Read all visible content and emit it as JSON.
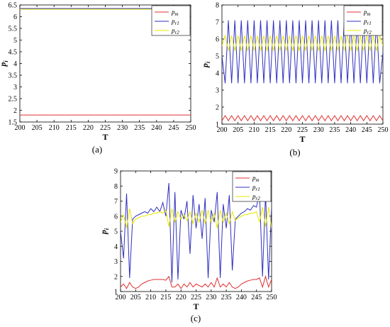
{
  "chart_data": [
    {
      "type": "line",
      "panel_label": "(a)",
      "xlabel": "T",
      "ylabel": "p",
      "ylabel_sub": "i",
      "xlim": [
        200,
        250
      ],
      "ylim": [
        1.5,
        6.5
      ],
      "xticks": [
        "200",
        "205",
        "210",
        "215",
        "220",
        "225",
        "230",
        "235",
        "240",
        "245",
        "250"
      ],
      "yticks": [
        "1.5",
        "2",
        "2.5",
        "3",
        "3.5",
        "4",
        "4.5",
        "5",
        "5.5",
        "6",
        "6.5"
      ],
      "legend_position": "top-right",
      "series": [
        {
          "name": "p",
          "sub": "m",
          "color": "#e03030",
          "x": [
            200,
            250
          ],
          "y": [
            1.8,
            1.8
          ]
        },
        {
          "name": "p",
          "sub": "r1",
          "color": "#3030c0",
          "x": [
            200,
            250
          ],
          "y": [
            6.35,
            6.35
          ]
        },
        {
          "name": "p",
          "sub": "r2",
          "color": "#e8e800",
          "x": [
            200,
            250
          ],
          "y": [
            6.32,
            6.32
          ]
        }
      ]
    },
    {
      "type": "line",
      "panel_label": "(b)",
      "xlabel": "T",
      "ylabel": "p",
      "ylabel_sub": "i",
      "xlim": [
        200,
        250
      ],
      "ylim": [
        1,
        8
      ],
      "xticks": [
        "200",
        "205",
        "210",
        "215",
        "220",
        "225",
        "230",
        "235",
        "240",
        "245",
        "250"
      ],
      "yticks": [
        "1",
        "2",
        "3",
        "4",
        "5",
        "6",
        "7",
        "8"
      ],
      "legend_position": "top-right",
      "series": [
        {
          "name": "p",
          "sub": "m",
          "color": "#e03030",
          "x": [
            200,
            201,
            202,
            203,
            204,
            205,
            206,
            207,
            208,
            209,
            210,
            211,
            212,
            213,
            214,
            215,
            216,
            217,
            218,
            219,
            220,
            221,
            222,
            223,
            224,
            225,
            226,
            227,
            228,
            229,
            230,
            231,
            232,
            233,
            234,
            235,
            236,
            237,
            238,
            239,
            240,
            241,
            242,
            243,
            244,
            245,
            246,
            247,
            248,
            249,
            250
          ],
          "y": [
            1.2,
            1.5,
            1.2,
            1.5,
            1.2,
            1.5,
            1.2,
            1.5,
            1.2,
            1.5,
            1.2,
            1.5,
            1.2,
            1.5,
            1.2,
            1.5,
            1.2,
            1.5,
            1.2,
            1.5,
            1.2,
            1.5,
            1.2,
            1.5,
            1.2,
            1.5,
            1.2,
            1.5,
            1.2,
            1.5,
            1.2,
            1.5,
            1.2,
            1.5,
            1.2,
            1.5,
            1.2,
            1.5,
            1.2,
            1.5,
            1.2,
            1.5,
            1.2,
            1.5,
            1.2,
            1.5,
            1.2,
            1.5,
            1.2,
            1.5,
            1.2
          ]
        },
        {
          "name": "p",
          "sub": "r1",
          "color": "#3030c0",
          "x": [
            200,
            201,
            202,
            203,
            204,
            205,
            206,
            207,
            208,
            209,
            210,
            211,
            212,
            213,
            214,
            215,
            216,
            217,
            218,
            219,
            220,
            221,
            222,
            223,
            224,
            225,
            226,
            227,
            228,
            229,
            230,
            231,
            232,
            233,
            234,
            235,
            236,
            237,
            238,
            239,
            240,
            241,
            242,
            243,
            244,
            245,
            246,
            247,
            248,
            249,
            250
          ],
          "y": [
            5.0,
            3.4,
            7.1,
            3.4,
            7.1,
            3.4,
            7.1,
            3.4,
            7.1,
            3.4,
            7.1,
            3.4,
            7.1,
            3.4,
            7.1,
            3.4,
            7.1,
            3.4,
            7.1,
            3.4,
            7.1,
            3.4,
            7.1,
            3.4,
            7.1,
            3.4,
            7.1,
            3.4,
            7.1,
            3.4,
            7.1,
            3.4,
            7.1,
            3.4,
            7.1,
            3.4,
            7.1,
            3.4,
            7.1,
            3.4,
            7.1,
            3.4,
            7.1,
            3.4,
            7.1,
            3.4,
            7.1,
            3.4,
            7.1,
            3.4,
            5.2
          ]
        },
        {
          "name": "p",
          "sub": "r2",
          "color": "#e8e800",
          "x": [
            200,
            201,
            202,
            203,
            204,
            205,
            206,
            207,
            208,
            209,
            210,
            211,
            212,
            213,
            214,
            215,
            216,
            217,
            218,
            219,
            220,
            221,
            222,
            223,
            224,
            225,
            226,
            227,
            228,
            229,
            230,
            231,
            232,
            233,
            234,
            235,
            236,
            237,
            238,
            239,
            240,
            241,
            242,
            243,
            244,
            245,
            246,
            247,
            248,
            249,
            250
          ],
          "y": [
            5.6,
            6.2,
            5.3,
            6.2,
            5.3,
            6.2,
            5.3,
            6.2,
            5.3,
            6.2,
            5.3,
            6.2,
            5.3,
            6.2,
            5.3,
            6.2,
            5.3,
            6.2,
            5.3,
            6.2,
            5.3,
            6.2,
            5.3,
            6.2,
            5.3,
            6.2,
            5.3,
            6.2,
            5.3,
            6.2,
            5.3,
            6.2,
            5.3,
            6.2,
            5.3,
            6.2,
            5.3,
            6.2,
            5.3,
            6.2,
            5.3,
            6.2,
            5.3,
            6.2,
            5.3,
            6.2,
            5.3,
            6.2,
            5.3,
            6.2,
            5.6
          ]
        }
      ]
    },
    {
      "type": "line",
      "panel_label": "(c)",
      "xlabel": "T",
      "ylabel": "p",
      "ylabel_sub": "i",
      "xlim": [
        200,
        250
      ],
      "ylim": [
        1,
        9
      ],
      "xticks": [
        "200",
        "205",
        "210",
        "215",
        "220",
        "225",
        "230",
        "235",
        "240",
        "245",
        "250"
      ],
      "yticks": [
        "1",
        "2",
        "3",
        "4",
        "5",
        "6",
        "7",
        "8",
        "9"
      ],
      "legend_position": "top-right",
      "series": [
        {
          "name": "p",
          "sub": "m",
          "color": "#e03030",
          "x": [
            200,
            201,
            202,
            203,
            204,
            205,
            206,
            207,
            208,
            209,
            210,
            211,
            212,
            213,
            214,
            215,
            216,
            217,
            218,
            219,
            220,
            221,
            222,
            223,
            224,
            225,
            226,
            227,
            228,
            229,
            230,
            231,
            232,
            233,
            234,
            235,
            236,
            237,
            238,
            239,
            240,
            241,
            242,
            243,
            244,
            245,
            246,
            247,
            248,
            249,
            250
          ],
          "y": [
            1.3,
            1.5,
            1.2,
            1.6,
            1.3,
            1.2,
            1.3,
            1.5,
            1.6,
            1.7,
            1.75,
            1.8,
            1.8,
            1.8,
            1.8,
            1.75,
            2.0,
            1.3,
            1.3,
            1.5,
            1.2,
            1.5,
            1.3,
            1.6,
            1.3,
            1.5,
            1.4,
            1.3,
            1.5,
            1.3,
            1.6,
            1.3,
            1.9,
            1.3,
            1.5,
            1.3,
            1.6,
            1.3,
            1.2,
            1.3,
            1.5,
            1.6,
            1.7,
            1.75,
            1.8,
            1.8,
            1.9,
            1.3,
            2.0,
            1.3,
            1.8
          ]
        },
        {
          "name": "p",
          "sub": "r1",
          "color": "#3030c0",
          "x": [
            200,
            201,
            202,
            203,
            204,
            205,
            206,
            207,
            208,
            209,
            210,
            211,
            212,
            213,
            214,
            215,
            216,
            217,
            218,
            219,
            220,
            221,
            222,
            223,
            224,
            225,
            226,
            227,
            228,
            229,
            230,
            231,
            232,
            233,
            234,
            235,
            236,
            237,
            238,
            239,
            240,
            241,
            242,
            243,
            244,
            245,
            246,
            247,
            248,
            249,
            250
          ],
          "y": [
            5.0,
            3.2,
            7.5,
            1.9,
            5.8,
            6.0,
            6.1,
            6.2,
            6.3,
            6.2,
            6.5,
            6.3,
            6.6,
            6.3,
            6.9,
            6.0,
            8.2,
            1.6,
            7.6,
            1.8,
            6.4,
            5.8,
            7.0,
            3.5,
            7.4,
            5.2,
            6.8,
            4.5,
            7.2,
            1.9,
            6.4,
            5.6,
            7.6,
            1.9,
            6.8,
            5.2,
            7.4,
            2.4,
            5.8,
            6.0,
            6.2,
            6.3,
            6.5,
            6.4,
            6.7,
            6.6,
            7.6,
            2.0,
            7.5,
            1.8,
            6.6
          ]
        },
        {
          "name": "p",
          "sub": "r2",
          "color": "#e8e800",
          "x": [
            200,
            201,
            202,
            203,
            204,
            205,
            206,
            207,
            208,
            209,
            210,
            211,
            212,
            213,
            214,
            215,
            216,
            217,
            218,
            219,
            220,
            221,
            222,
            223,
            224,
            225,
            226,
            227,
            228,
            229,
            230,
            231,
            232,
            233,
            234,
            235,
            236,
            237,
            238,
            239,
            240,
            241,
            242,
            243,
            244,
            245,
            246,
            247,
            248,
            249,
            250
          ],
          "y": [
            5.6,
            6.1,
            5.2,
            6.5,
            5.5,
            5.8,
            5.9,
            6.0,
            6.0,
            6.1,
            6.1,
            6.2,
            6.2,
            6.3,
            6.2,
            6.4,
            5.3,
            6.5,
            5.6,
            6.3,
            5.8,
            6.1,
            5.7,
            6.3,
            5.5,
            6.2,
            5.6,
            6.4,
            5.5,
            6.4,
            5.6,
            6.2,
            5.2,
            6.4,
            5.6,
            6.2,
            5.5,
            6.3,
            5.7,
            5.9,
            6.0,
            6.1,
            6.1,
            6.2,
            6.2,
            6.3,
            5.6,
            6.6,
            5.3,
            6.6,
            5.2
          ]
        }
      ]
    }
  ]
}
